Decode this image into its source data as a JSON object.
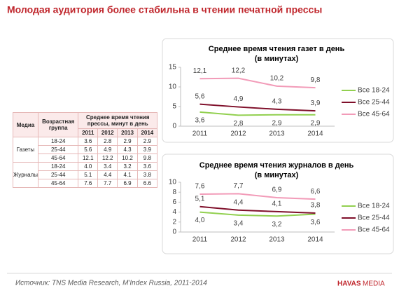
{
  "title": "Молодая аудитория более стабильна в чтении печатной прессы",
  "source": "Источник: TNS Media Research, M'Index Russia, 2011-2014",
  "logo": {
    "left": "HAVAS",
    "right": "MEDIA"
  },
  "table": {
    "headers": [
      "Медиа",
      "Возрастная группа",
      "Среднее время чтения прессы, минут в день"
    ],
    "years": [
      "2011",
      "2012",
      "2013",
      "2014"
    ],
    "groups": [
      {
        "name": "Газеты",
        "rows": [
          [
            "18-24",
            "3.6",
            "2.8",
            "2.9",
            "2.9"
          ],
          [
            "25-44",
            "5.6",
            "4.9",
            "4.3",
            "3.9"
          ],
          [
            "45-64",
            "12.1",
            "12.2",
            "10.2",
            "9.8"
          ]
        ]
      },
      {
        "name": "Журналы",
        "rows": [
          [
            "18-24",
            "4.0",
            "3.4",
            "3.2",
            "3.6"
          ],
          [
            "25-44",
            "5.1",
            "4.4",
            "4.1",
            "3.8"
          ],
          [
            "45-64",
            "7.6",
            "7.7",
            "6.9",
            "6.6"
          ]
        ]
      }
    ]
  },
  "chart_data": [
    {
      "type": "line",
      "title": "Среднее время чтения газет в день",
      "subtitle": "(в минутах)",
      "categories": [
        "2011",
        "2012",
        "2013",
        "2014"
      ],
      "ylim": [
        0,
        15
      ],
      "yticks": [
        0,
        5,
        10,
        15
      ],
      "grid": false,
      "legend": "right",
      "series": [
        {
          "name": "Все 18-24",
          "color": "#92d050",
          "values": [
            3.6,
            2.8,
            2.9,
            2.9
          ],
          "value_labels": [
            "3,6",
            "2,8",
            "2,9",
            "2,9"
          ]
        },
        {
          "name": "Все 25-44",
          "color": "#7f0f2a",
          "values": [
            5.6,
            4.9,
            4.3,
            3.9
          ],
          "value_labels": [
            "5,6",
            "4,9",
            "4,3",
            "3,9"
          ]
        },
        {
          "name": "Все 45-64",
          "color": "#f29bb8",
          "values": [
            12.1,
            12.2,
            10.2,
            9.8
          ],
          "value_labels": [
            "12,1",
            "12,2",
            "10,2",
            "9,8"
          ]
        }
      ]
    },
    {
      "type": "line",
      "title": "Среднее время чтения журналов в день",
      "subtitle": "(в минутах)",
      "categories": [
        "2011",
        "2012",
        "2013",
        "2014"
      ],
      "ylim": [
        0,
        10
      ],
      "yticks": [
        0,
        2,
        4,
        6,
        8,
        10
      ],
      "grid": false,
      "legend": "right",
      "series": [
        {
          "name": "Все 18-24",
          "color": "#92d050",
          "values": [
            4.0,
            3.4,
            3.2,
            3.6
          ],
          "value_labels": [
            "4,0",
            "3,4",
            "3,2",
            "3,6"
          ]
        },
        {
          "name": "Все 25-44",
          "color": "#7f0f2a",
          "values": [
            5.1,
            4.4,
            4.1,
            3.8
          ],
          "value_labels": [
            "5,1",
            "4,4",
            "4,1",
            "3,8"
          ]
        },
        {
          "name": "Все 45-64",
          "color": "#f29bb8",
          "values": [
            7.6,
            7.7,
            6.9,
            6.6
          ],
          "value_labels": [
            "7,6",
            "7,7",
            "6,9",
            "6,6"
          ]
        }
      ]
    }
  ]
}
